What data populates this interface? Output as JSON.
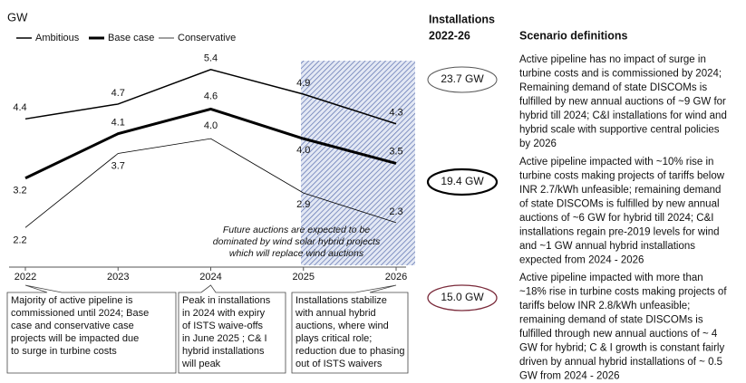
{
  "chart_data": {
    "type": "line",
    "y_label": "GW",
    "categories": [
      "2022",
      "2023",
      "2024",
      "2025",
      "2026"
    ],
    "series": [
      {
        "name": "Ambitious",
        "color": "#000000",
        "line_width": 1.5,
        "values": [
          4.4,
          4.7,
          5.4,
          4.9,
          4.3
        ],
        "value_labels": [
          "4.4",
          "4.7",
          "5.4",
          "4.9",
          "4.3"
        ]
      },
      {
        "name": "Base case",
        "color": "#000000",
        "line_width": 3,
        "values": [
          3.2,
          4.1,
          4.6,
          4.0,
          3.5
        ],
        "value_labels": [
          "3.2",
          "4.1",
          "4.6",
          "4.0",
          "3.5"
        ]
      },
      {
        "name": "Conservative",
        "color": "#000000",
        "line_width": 0.8,
        "values": [
          2.2,
          3.7,
          4.0,
          2.9,
          2.3
        ],
        "value_labels": [
          "2.2",
          "3.7",
          "4.0",
          "2.9",
          "2.3"
        ]
      }
    ],
    "ylim": [
      1.4,
      6.0
    ],
    "annotation": [
      "Future auctions are expected to be",
      "dominated by wind solar hybrid projects",
      "which will replace wind auctions"
    ],
    "callouts": [
      [
        "Majority of active pipeline is",
        "commissioned until 2024; Base",
        "case and conservative case",
        "projects will be impacted due",
        "to surge in turbine costs"
      ],
      [
        "Peak in installations",
        "in 2024 with expiry",
        "of ISTS waive-offs",
        "in June 2025 ; C& I",
        "hybrid installations",
        "will peak"
      ],
      [
        "Installations stabilize",
        "with annual hybrid",
        "auctions, where wind",
        "plays critical role;",
        "reduction due to phasing",
        "out of ISTS waivers"
      ]
    ]
  },
  "panel": {
    "installations_header": [
      "Installations",
      "2022-26"
    ],
    "scenario_header": "Scenario definitions",
    "scenarios": [
      {
        "installations": "23.7 GW",
        "definition": [
          "Active pipeline has no impact of surge in",
          "turbine costs and is commissioned by 2024;",
          "Remaining demand of state DISCOMs is",
          "fulfilled by new annual auctions of ~9 GW for",
          "hybrid till 2024; C&I installations for wind and",
          "hybrid scale with supportive central policies",
          "by 2026"
        ]
      },
      {
        "installations": "19.4 GW",
        "definition": [
          "Active pipeline impacted with ~10% rise in",
          "turbine costs making projects of tariffs below",
          "INR 2.7/kWh unfeasible; remaining demand",
          "of state DISCOMs is fulfilled by new annual",
          "auctions of ~6 GW for hybrid till 2024; C&I",
          "installations regain pre-2019 levels for wind",
          "and ~1 GW annual hybrid installations",
          "expected from 2024 - 2026"
        ]
      },
      {
        "installations": "15.0 GW",
        "definition": [
          "Active pipeline impacted with more than",
          "~18% rise in turbine costs making projects of",
          "tariffs below INR 2.8/kWh unfeasible;",
          "remaining demand of state DISCOMs is",
          "fulfilled through new annual auctions of ~ 4",
          "GW for hybrid; C & I growth is constant fairly",
          "driven by annual  hybrid installations of ~ 0.5",
          "GW  from 2024 - 2026"
        ]
      }
    ]
  }
}
